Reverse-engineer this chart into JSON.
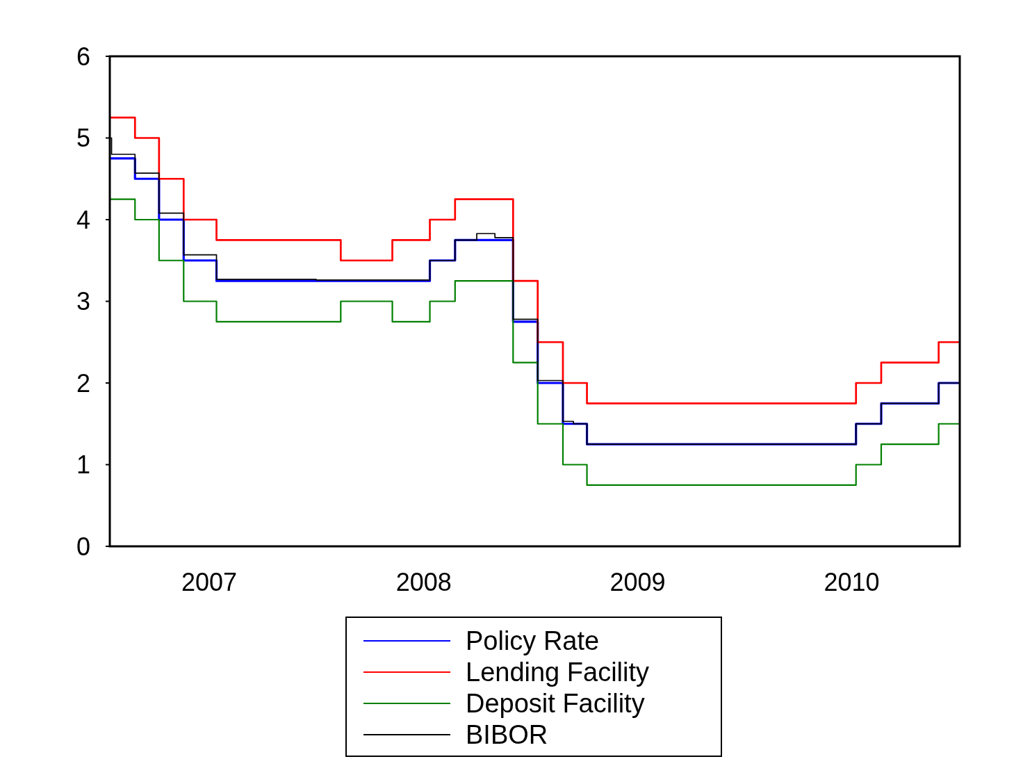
{
  "chart_data": {
    "type": "step",
    "xlim": [
      "2007-01-14",
      "2011-01-03"
    ],
    "xticks": [
      {
        "value": "2007-07-02",
        "label": "2007"
      },
      {
        "value": "2008-07-02",
        "label": "2008"
      },
      {
        "value": "2009-07-02",
        "label": "2009"
      },
      {
        "value": "2010-07-02",
        "label": "2010"
      }
    ],
    "ylim": [
      0,
      6
    ],
    "yticks": [
      0,
      1,
      2,
      3,
      4,
      5,
      6
    ],
    "grid": false,
    "legend": "bottom",
    "line_style": "solid",
    "marker": "none",
    "x": [
      "2007-01-14",
      "2007-02-26",
      "2007-04-08",
      "2007-05-20",
      "2007-07-15",
      "2008-02-12",
      "2008-05-10",
      "2008-07-13",
      "2008-08-25",
      "2008-12-02",
      "2009-01-13",
      "2009-02-25",
      "2009-04-07",
      "2010-07-10",
      "2010-08-22",
      "2010-11-28",
      "2011-01-03"
    ],
    "series": [
      {
        "name": "Policy Rate",
        "color": "#0000ff",
        "values": [
          4.75,
          4.5,
          4.0,
          3.5,
          3.25,
          3.25,
          3.25,
          3.5,
          3.75,
          2.75,
          2.0,
          1.5,
          1.25,
          1.5,
          1.75,
          2.0,
          2.0
        ]
      },
      {
        "name": "Lending Facility",
        "color": "#ff0000",
        "values": [
          5.25,
          5.0,
          4.5,
          4.0,
          3.75,
          3.5,
          3.75,
          4.0,
          4.25,
          3.25,
          2.5,
          2.0,
          1.75,
          2.0,
          2.25,
          2.5,
          2.5
        ]
      },
      {
        "name": "Deposit Facility",
        "color": "#008000",
        "values": [
          4.25,
          4.0,
          3.5,
          3.0,
          2.75,
          3.0,
          2.75,
          3.0,
          3.25,
          2.25,
          1.5,
          1.0,
          0.75,
          1.0,
          1.25,
          1.5,
          1.5
        ]
      },
      {
        "name": "BIBOR",
        "color": "#000000",
        "x": [
          "2007-01-14",
          "2007-01-17",
          "2007-02-26",
          "2007-04-08",
          "2007-05-20",
          "2007-07-15",
          "2008-01-01",
          "2008-07-13",
          "2008-08-25",
          "2008-10-01",
          "2008-11-01",
          "2008-12-02",
          "2009-01-13",
          "2009-02-25",
          "2009-03-15",
          "2009-04-07",
          "2010-07-10",
          "2010-08-22",
          "2010-11-28",
          "2011-01-03"
        ],
        "values": [
          5.0,
          4.8,
          4.57,
          4.08,
          3.57,
          3.27,
          3.26,
          3.5,
          3.75,
          3.83,
          3.78,
          2.78,
          2.03,
          1.53,
          1.5,
          1.25,
          1.5,
          1.75,
          2.0,
          2.0
        ]
      }
    ]
  }
}
